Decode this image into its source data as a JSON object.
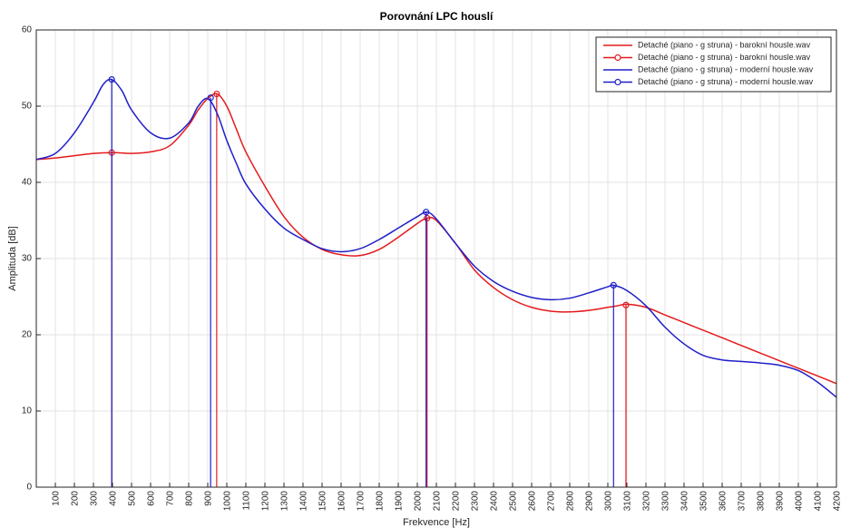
{
  "chart_data": {
    "type": "line",
    "title": "Porovnání LPC houslí",
    "xlabel": "Frekvence [Hz]",
    "ylabel": "Amplituda [dB]",
    "xlim": [
      0,
      4200
    ],
    "ylim": [
      0,
      60
    ],
    "xticks": [
      100,
      200,
      300,
      400,
      500,
      600,
      700,
      800,
      900,
      1000,
      1100,
      1200,
      1300,
      1400,
      1500,
      1600,
      1700,
      1800,
      1900,
      2000,
      2100,
      2200,
      2300,
      2400,
      2500,
      2600,
      2700,
      2800,
      2900,
      3000,
      3100,
      3200,
      3300,
      3400,
      3500,
      3600,
      3700,
      3800,
      3900,
      4000,
      4100,
      4200
    ],
    "yticks": [
      0,
      10,
      20,
      30,
      40,
      50,
      60
    ],
    "grid": true,
    "legend_position": "top-right",
    "legend": [
      "Detaché (piano - g struna) - barokní housle.wav",
      "Detaché (piano - g struna) - barokní housle.wav",
      "Detaché (piano - g struna) - moderní housle.wav",
      "Detaché (piano - g struna) - moderní housle.wav"
    ],
    "series": [
      {
        "name": "Detaché (piano - g struna) - barokní housle.wav",
        "color": "#e41a1c",
        "style": "line",
        "x": [
          0,
          100,
          200,
          300,
          400,
          500,
          600,
          700,
          800,
          850,
          900,
          950,
          1000,
          1050,
          1100,
          1200,
          1300,
          1400,
          1500,
          1600,
          1700,
          1800,
          1900,
          2000,
          2050,
          2100,
          2200,
          2300,
          2400,
          2500,
          2600,
          2700,
          2800,
          2900,
          3000,
          3050,
          3100,
          3200,
          3300,
          3400,
          3500,
          3600,
          3700,
          3800,
          3900,
          4000,
          4100,
          4200
        ],
        "y": [
          43.0,
          43.2,
          43.5,
          43.8,
          43.9,
          43.8,
          44.0,
          44.8,
          47.5,
          49.5,
          51.0,
          51.6,
          50.0,
          47.0,
          44.0,
          39.5,
          35.5,
          32.8,
          31.2,
          30.5,
          30.4,
          31.2,
          32.8,
          34.6,
          35.3,
          35.0,
          32.0,
          28.5,
          26.2,
          24.6,
          23.6,
          23.1,
          23.0,
          23.2,
          23.6,
          23.8,
          24.0,
          23.6,
          22.6,
          21.6,
          20.6,
          19.6,
          18.6,
          17.6,
          16.6,
          15.6,
          14.6,
          13.6
        ]
      },
      {
        "name": "Detaché (piano - g struna) - barokní housle.wav",
        "color": "#e41a1c",
        "style": "stem",
        "x": [
          396,
          947,
          2051,
          3095
        ],
        "y": [
          43.9,
          51.6,
          35.3,
          23.9
        ]
      },
      {
        "name": "Detaché (piano - g struna) - moderní housle.wav",
        "color": "#1f1fc8",
        "style": "line",
        "x": [
          0,
          100,
          200,
          300,
          350,
          396,
          450,
          500,
          600,
          700,
          800,
          850,
          900,
          950,
          1000,
          1050,
          1100,
          1200,
          1300,
          1400,
          1500,
          1600,
          1700,
          1800,
          1900,
          2000,
          2050,
          2100,
          2200,
          2300,
          2400,
          2500,
          2600,
          2700,
          2800,
          2900,
          3000,
          3030,
          3100,
          3200,
          3300,
          3400,
          3500,
          3600,
          3700,
          3800,
          3900,
          4000,
          4100,
          4200
        ],
        "y": [
          43.0,
          43.8,
          46.5,
          50.5,
          52.8,
          53.5,
          52.0,
          49.5,
          46.5,
          45.8,
          47.8,
          50.0,
          51.0,
          49.0,
          45.5,
          42.5,
          39.8,
          36.5,
          34.0,
          32.5,
          31.3,
          30.9,
          31.3,
          32.5,
          34.0,
          35.5,
          36.1,
          35.2,
          32.0,
          29.0,
          27.0,
          25.7,
          24.9,
          24.6,
          24.8,
          25.5,
          26.3,
          26.5,
          25.8,
          23.8,
          21.0,
          18.8,
          17.3,
          16.7,
          16.5,
          16.3,
          16.0,
          15.3,
          13.8,
          11.8
        ]
      },
      {
        "name": "Detaché (piano - g struna) - moderní housle.wav",
        "color": "#1f1fc8",
        "style": "stem",
        "x": [
          396,
          915,
          2046,
          3030
        ],
        "y": [
          53.5,
          51.1,
          36.1,
          26.5
        ]
      }
    ]
  }
}
